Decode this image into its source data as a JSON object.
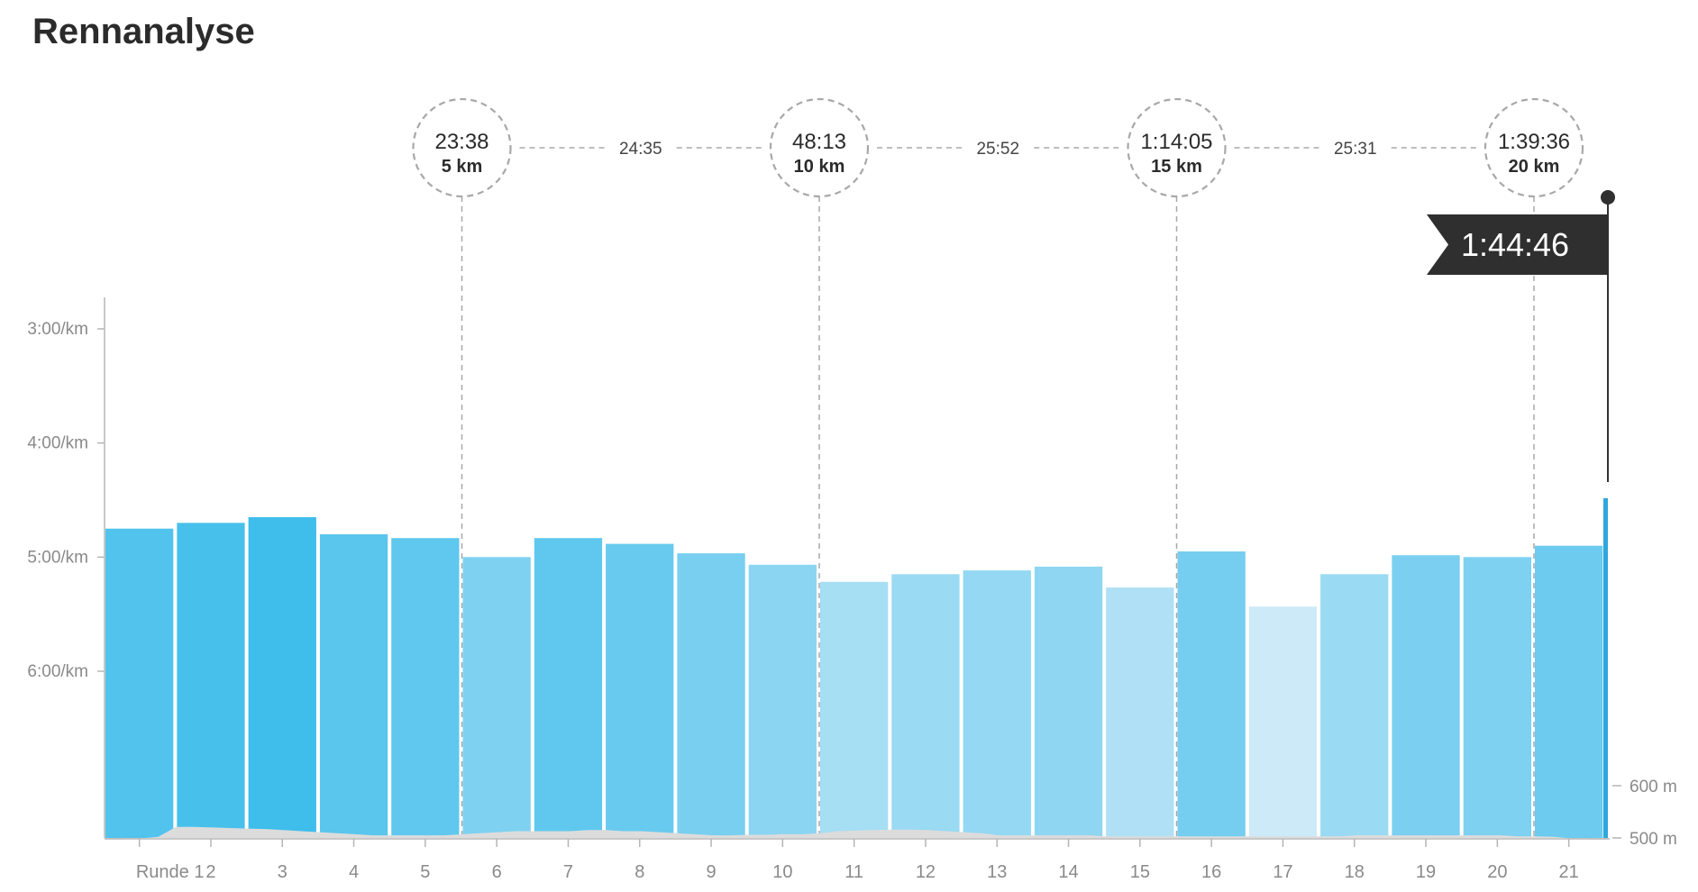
{
  "chart_data": {
    "type": "bar",
    "title": "Rennanalyse",
    "categories": [
      "Runde 1",
      "2",
      "3",
      "4",
      "5",
      "6",
      "7",
      "8",
      "9",
      "10",
      "11",
      "12",
      "13",
      "14",
      "15",
      "16",
      "17",
      "18",
      "19",
      "20",
      "21"
    ],
    "pace_seconds_per_km": [
      285,
      282,
      279,
      288,
      290,
      300,
      290,
      293,
      298,
      304,
      313,
      309,
      307,
      305,
      316,
      297,
      326,
      309,
      299,
      300,
      294
    ],
    "last_partial_pace_seconds_per_km": 269,
    "y_axis": {
      "ticks": [
        {
          "value": 180,
          "label": "3:00/km"
        },
        {
          "value": 240,
          "label": "4:00/km"
        },
        {
          "value": 300,
          "label": "5:00/km"
        },
        {
          "value": 360,
          "label": "6:00/km"
        }
      ],
      "range_seconds_per_km": [
        165,
        450
      ],
      "inverted": true
    },
    "elevation_axis": {
      "ticks": [
        {
          "value": 600,
          "label": "600 m"
        },
        {
          "value": 500,
          "label": "500 m"
        }
      ]
    },
    "elevation_profile_m": [
      497,
      497,
      499,
      502,
      521,
      521,
      520,
      519,
      518,
      517,
      515,
      513,
      511,
      509,
      507,
      505,
      505,
      505,
      505,
      505,
      507,
      509,
      511,
      513,
      513,
      513,
      513,
      515,
      515,
      513,
      513,
      511,
      509,
      507,
      505,
      505,
      506,
      506,
      507,
      507,
      509,
      513,
      514,
      515,
      516,
      516,
      515,
      513,
      511,
      509,
      505,
      505,
      505,
      505,
      505,
      505,
      503,
      503,
      503,
      503,
      503,
      503,
      503,
      503,
      503,
      503,
      503,
      503,
      503,
      503,
      505,
      505,
      505,
      505,
      505,
      505,
      505,
      505,
      505,
      503,
      503,
      502,
      499,
      497,
      497
    ],
    "splits": [
      {
        "km": 5,
        "km_label": "5 km",
        "time": "23:38"
      },
      {
        "km": 10,
        "km_label": "10 km",
        "time": "48:13"
      },
      {
        "km": 15,
        "km_label": "15 km",
        "time": "1:14:05"
      },
      {
        "km": 20,
        "km_label": "20 km",
        "time": "1:39:36"
      }
    ],
    "segment_times": [
      "24:35",
      "25:52",
      "25:31"
    ],
    "finish_time": "1:44:46",
    "colors": {
      "bar_fast": "#3fbdeb",
      "bar_slow": "#cdeaf8",
      "last_bar": "#2fa7dc",
      "elevation_fill": "#dcdcdc",
      "axis": "#b5b5b5",
      "dashed": "#a8a8a8",
      "finish_flag": "#2f2f2f"
    }
  }
}
